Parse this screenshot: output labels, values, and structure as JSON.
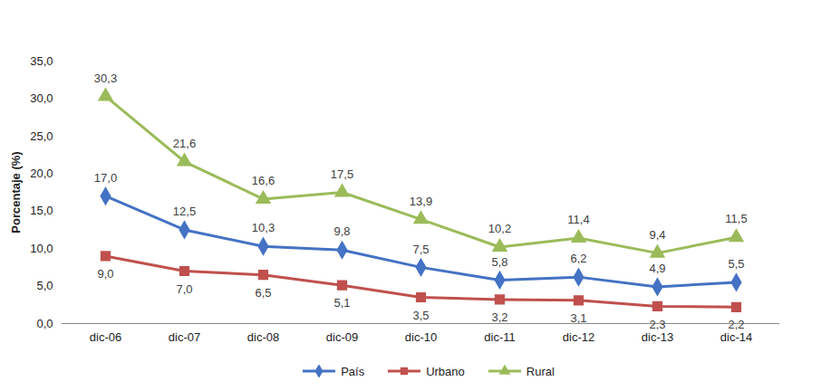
{
  "chart_data": {
    "type": "line",
    "y_label": "Porcentaje (%)",
    "categories": [
      "dic-06",
      "dic-07",
      "dic-08",
      "dic-09",
      "dic-10",
      "dic-11",
      "dic-12",
      "dic-13",
      "dic-14"
    ],
    "series": [
      {
        "name": "País",
        "color": "#4472c4",
        "marker": "diamond",
        "values": [
          17.0,
          12.5,
          10.3,
          9.8,
          7.5,
          5.8,
          6.2,
          4.9,
          5.5
        ],
        "value_labels": [
          "17,0",
          "12,5",
          "10,3",
          "9,8",
          "7,5",
          "5,8",
          "6,2",
          "4,9",
          "5,5"
        ]
      },
      {
        "name": "Urbano",
        "color": "#c0504d",
        "marker": "square",
        "values": [
          9.0,
          7.0,
          6.5,
          5.1,
          3.5,
          3.2,
          3.1,
          2.3,
          2.2
        ],
        "value_labels": [
          "9,0",
          "7,0",
          "6,5",
          "5,1",
          "3,5",
          "3,2",
          "3,1",
          "2,3",
          "2,2"
        ]
      },
      {
        "name": "Rural",
        "color": "#9bbb59",
        "marker": "triangle",
        "values": [
          30.3,
          21.6,
          16.6,
          17.5,
          13.9,
          10.2,
          11.4,
          9.4,
          11.5
        ],
        "value_labels": [
          "30,3",
          "21,6",
          "16,6",
          "17,5",
          "13,9",
          "10,2",
          "11,4",
          "9,4",
          "11,5"
        ]
      }
    ],
    "ylim": [
      0,
      35
    ],
    "yticks": [
      {
        "value": 0,
        "label": "0,0"
      },
      {
        "value": 5,
        "label": "5,0"
      },
      {
        "value": 10,
        "label": "10,0"
      },
      {
        "value": 15,
        "label": "15,0"
      },
      {
        "value": 20,
        "label": "20,0"
      },
      {
        "value": 25,
        "label": "25,0"
      },
      {
        "value": 30,
        "label": "30,0"
      },
      {
        "value": 35,
        "label": "35,0"
      }
    ],
    "grid": false,
    "data_labels": true,
    "legend": "bottom"
  }
}
